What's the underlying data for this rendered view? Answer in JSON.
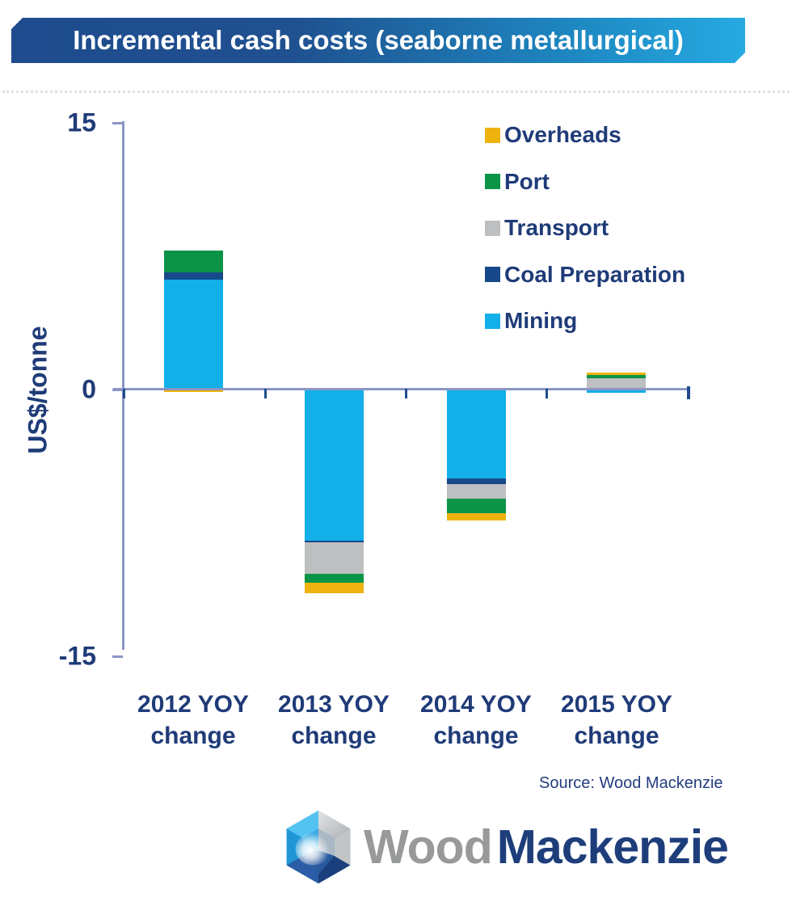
{
  "title": "Incremental cash costs (seaborne metallurgical)",
  "y_axis": {
    "label": "US$/tonne",
    "ticks": [
      {
        "label": "15",
        "value": 15
      },
      {
        "label": "0",
        "value": 0
      },
      {
        "label": "-15",
        "value": -15
      }
    ]
  },
  "x_labels": [
    {
      "line1": "2012 YOY",
      "line2": "change"
    },
    {
      "line1": "2013 YOY",
      "line2": "change"
    },
    {
      "line1": "2014 YOY",
      "line2": "change"
    },
    {
      "line1": "2015 YOY",
      "line2": "change"
    }
  ],
  "legend": {
    "items": [
      {
        "label": "Overheads",
        "color": "#EFB310"
      },
      {
        "label": "Port",
        "color": "#0B9448"
      },
      {
        "label": "Transport",
        "color": "#BEBFC1"
      },
      {
        "label": "Coal Preparation",
        "color": "#17498A"
      },
      {
        "label": "Mining",
        "color": "#12AFE8"
      }
    ]
  },
  "source": {
    "text": "Source: Wood Mackenzie"
  },
  "logo": {
    "word1": "Wood",
    "word2": "Mackenzie",
    "icon": "wood-mackenzie-gem-icon"
  },
  "colors": {
    "banner_start": "#1E4C8E",
    "banner_end": "#25AAE1",
    "axis": "#8A96C4",
    "tick": "#1E4C8C",
    "text_navy": "#1F3B78"
  },
  "chart_data": {
    "type": "bar",
    "stacked": true,
    "title": "Incremental cash costs (seaborne metallurgical)",
    "ylabel": "US$/tonne",
    "xlabel": "",
    "ylim": [
      -15,
      15
    ],
    "grid": false,
    "legend_position": "upper right",
    "legend_order": [
      "Overheads",
      "Port",
      "Transport",
      "Coal Preparation",
      "Mining"
    ],
    "categories": [
      "2012 YOY change",
      "2013 YOY change",
      "2014 YOY change",
      "2015 YOY change"
    ],
    "series": [
      {
        "name": "Mining",
        "color": "#12AFE8",
        "values": [
          6.2,
          -8.5,
          -5.0,
          -0.2
        ]
      },
      {
        "name": "Coal Preparation",
        "color": "#17498A",
        "values": [
          0.4,
          -0.1,
          -0.3,
          0
        ]
      },
      {
        "name": "Transport",
        "color": "#BEBFC1",
        "values": [
          0,
          -1.75,
          -0.85,
          0.65
        ]
      },
      {
        "name": "Port",
        "color": "#0B9448",
        "values": [
          1.2,
          -0.5,
          -0.8,
          0.15
        ]
      },
      {
        "name": "Overheads",
        "color": "#EFB310",
        "values": [
          -0.15,
          -0.6,
          -0.4,
          0.15
        ]
      }
    ]
  }
}
